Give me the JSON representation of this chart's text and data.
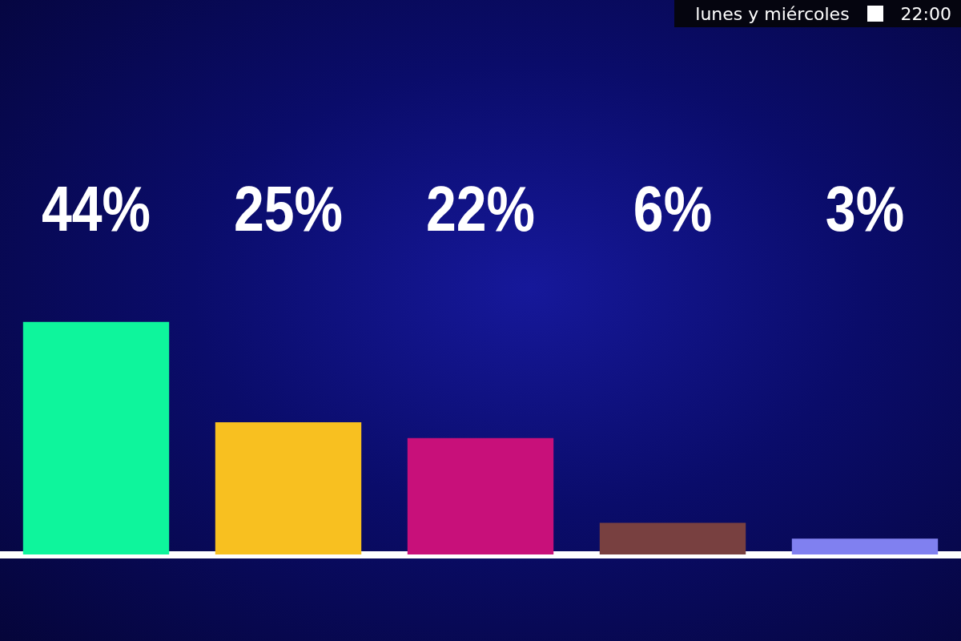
{
  "chart_data": {
    "type": "bar",
    "categories": [
      null,
      null,
      null,
      null,
      null
    ],
    "values": [
      44,
      25,
      22,
      6,
      3
    ],
    "value_labels": [
      "44%",
      "25%",
      "22%",
      "6%",
      "3%"
    ],
    "colors": [
      "#0ef59c",
      "#f8c020",
      "#c8107a",
      "#784040",
      "#8080f0"
    ],
    "annotations": [
      "lunes y miércoles",
      "22:00"
    ],
    "legend": false
  }
}
